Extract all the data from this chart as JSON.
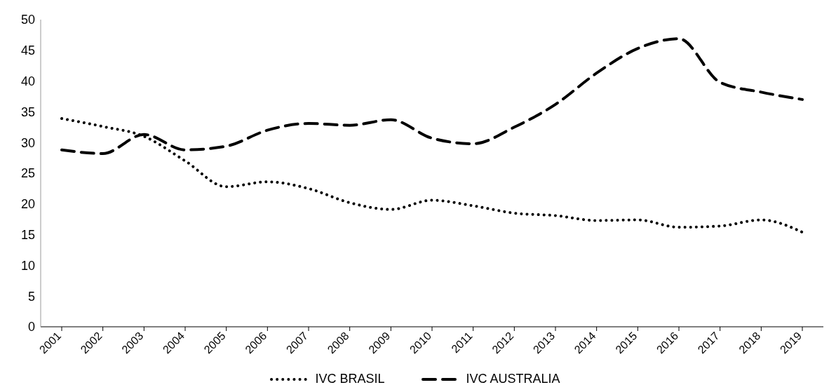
{
  "chart_data": {
    "type": "line",
    "categories": [
      "2001",
      "2002",
      "2003",
      "2004",
      "2005",
      "2006",
      "2007",
      "2008",
      "2009",
      "2010",
      "2011",
      "2012",
      "2013",
      "2014",
      "2015",
      "2016",
      "2017",
      "2018",
      "2019"
    ],
    "series": [
      {
        "name": "IVC BRASIL",
        "color": "#000000",
        "line_style": "dotted",
        "values": [
          33.9,
          32.6,
          31,
          27,
          22.8,
          23.6,
          22.5,
          20.2,
          19.1,
          20.6,
          19.7,
          18.5,
          18.1,
          17.3,
          17.4,
          16.2,
          16.4,
          17.4,
          15.4
        ]
      },
      {
        "name": "IVC AUSTRALIA",
        "color": "#000000",
        "line_style": "dashed",
        "values": [
          28.8,
          28.2,
          31.3,
          28.8,
          29.4,
          32,
          33.1,
          32.8,
          33.7,
          30.7,
          29.8,
          32.5,
          36.2,
          41.3,
          45.3,
          46.9,
          39.8,
          38.2,
          37
        ]
      }
    ],
    "ylim": [
      0,
      50
    ],
    "yticks": [
      0,
      5,
      10,
      15,
      20,
      25,
      30,
      35,
      40,
      45,
      50
    ],
    "grid": false,
    "legend": "bottom",
    "marker": "none"
  }
}
